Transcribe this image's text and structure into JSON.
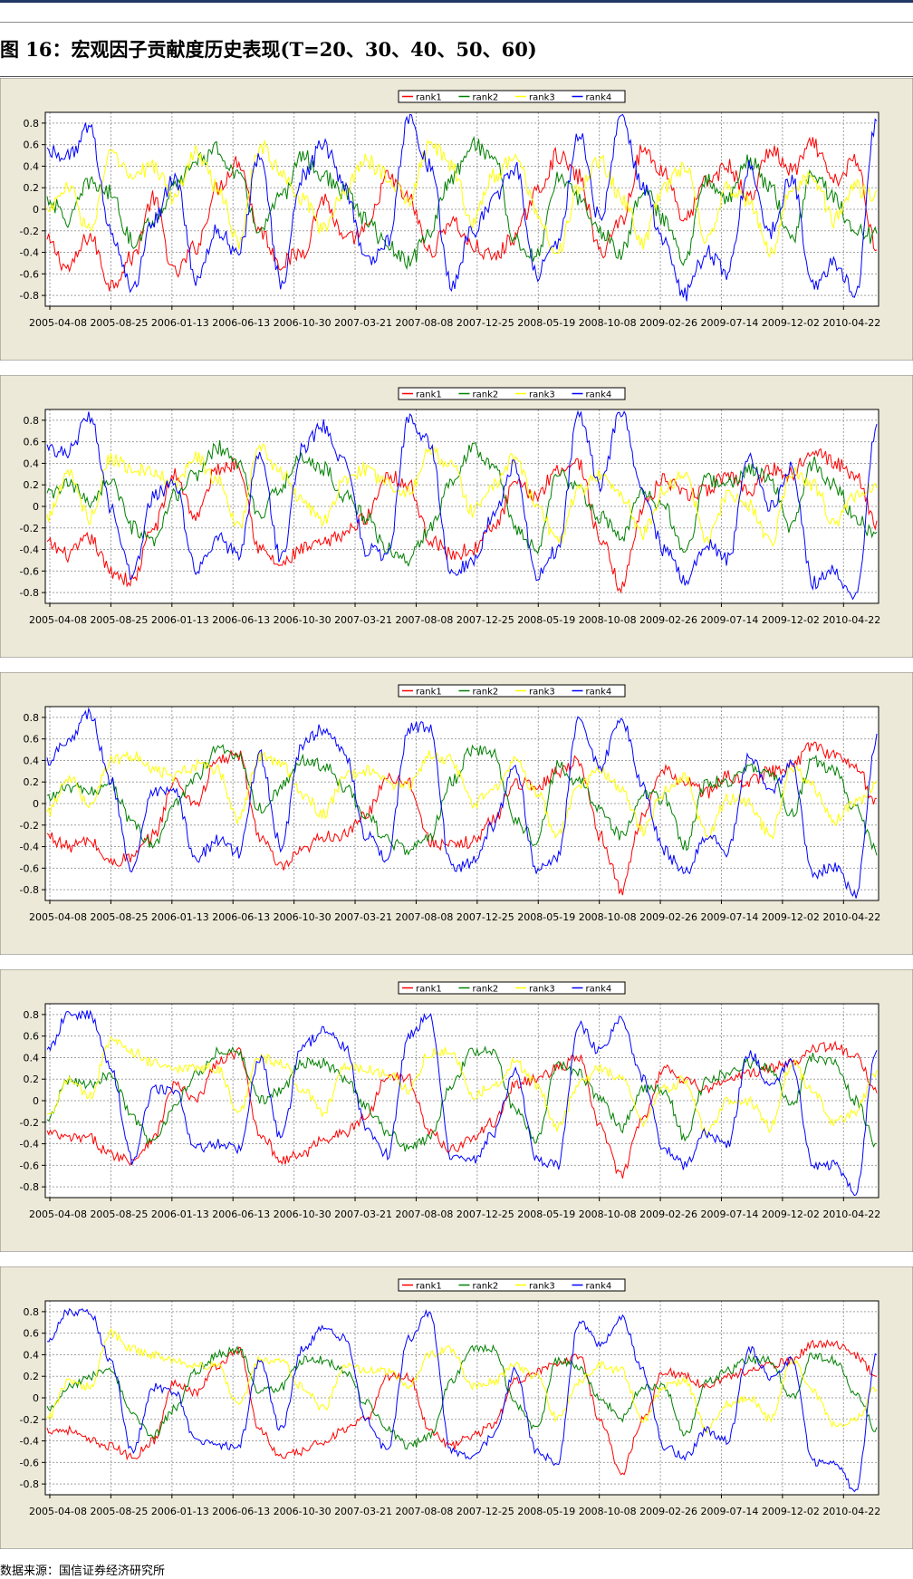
{
  "figure": {
    "title": "图 16：宏观因子贡献度历史表现(T=20、30、40、50、60)",
    "source_note": "数据来源：国信证券经济研究所"
  },
  "colors": {
    "rank1": "#ff0000",
    "rank2": "#008000",
    "rank3": "#ffff00",
    "rank4": "#0000ff",
    "plot_background": "#ffffff",
    "frame_background": "#ece9d8",
    "grid": "#a0a0a0"
  },
  "chart_data": [
    {
      "type": "line",
      "x_ticks": [
        "2005-04-08",
        "2005-08-25",
        "2006-01-13",
        "2006-06-13",
        "2006-10-30",
        "2007-03-21",
        "2007-08-08",
        "2007-12-25",
        "2008-05-19",
        "2008-10-08",
        "2009-02-26",
        "2009-07-14",
        "2009-12-02",
        "2010-04-22"
      ],
      "y_ticks": [
        "0.8",
        "0.6",
        "0.4",
        "0.2",
        "0",
        "-0.2",
        "-0.4",
        "-0.6",
        "-0.8"
      ],
      "ylim": [
        -0.9,
        0.9
      ],
      "grid": true,
      "legend_position": "top-center",
      "series": [
        {
          "name": "rank1",
          "values": [
            -0.3,
            -0.55,
            -0.25,
            -0.7,
            -0.45,
            0.1,
            -0.6,
            -0.35,
            0.2,
            0.45,
            -0.2,
            -0.5,
            -0.4,
            0.1,
            -0.3,
            -0.2,
            0.3,
            0.1,
            -0.4,
            -0.1,
            -0.35,
            -0.45,
            -0.25,
            0.15,
            0.5,
            0.3,
            -0.4,
            -0.1,
            0.55,
            0.35,
            -0.1,
            0.25,
            0.4,
            0.1,
            0.55,
            0.35,
            0.6,
            0.25,
            0.45,
            -0.35
          ]
        },
        {
          "name": "rank2",
          "values": [
            0.1,
            -0.1,
            0.25,
            0.15,
            -0.3,
            -0.1,
            0.2,
            0.45,
            0.55,
            0.3,
            -0.2,
            0.1,
            0.5,
            0.3,
            0.15,
            -0.1,
            -0.35,
            -0.5,
            -0.2,
            0.3,
            0.6,
            0.5,
            -0.3,
            -0.45,
            0.3,
            0.1,
            -0.2,
            -0.4,
            0.2,
            -0.1,
            -0.45,
            0.3,
            0.1,
            0.45,
            0.2,
            -0.3,
            0.35,
            0.1,
            -0.2,
            -0.25
          ]
        },
        {
          "name": "rank3",
          "values": [
            0.0,
            0.2,
            -0.2,
            0.5,
            0.3,
            0.4,
            0.1,
            0.55,
            0.2,
            -0.3,
            0.6,
            0.35,
            0.1,
            -0.2,
            0.2,
            0.45,
            0.3,
            0.1,
            0.6,
            0.4,
            -0.1,
            0.3,
            0.5,
            0.0,
            -0.4,
            0.2,
            0.45,
            0.1,
            -0.3,
            0.2,
            0.4,
            -0.3,
            0.2,
            0.05,
            -0.4,
            0.2,
            0.3,
            -0.1,
            0.2,
            0.1
          ]
        },
        {
          "name": "rank4",
          "values": [
            0.55,
            0.5,
            0.75,
            -0.2,
            -0.75,
            -0.1,
            0.3,
            -0.65,
            -0.2,
            -0.4,
            0.5,
            -0.7,
            0.3,
            0.6,
            0.2,
            -0.5,
            -0.3,
            0.85,
            0.4,
            -0.7,
            -0.2,
            0.1,
            0.4,
            -0.6,
            -0.3,
            0.7,
            -0.1,
            0.85,
            0.2,
            -0.3,
            -0.8,
            -0.4,
            -0.6,
            0.4,
            -0.2,
            0.3,
            -0.7,
            -0.5,
            -0.8,
            0.85
          ]
        }
      ]
    },
    {
      "type": "line",
      "x_ticks": [
        "2005-04-08",
        "2005-08-25",
        "2006-01-13",
        "2006-06-13",
        "2006-10-30",
        "2007-03-21",
        "2007-08-08",
        "2007-12-25",
        "2008-05-19",
        "2008-10-08",
        "2009-02-26",
        "2009-07-14",
        "2009-12-02",
        "2010-04-22"
      ],
      "y_ticks": [
        "0.8",
        "0.6",
        "0.4",
        "0.2",
        "0",
        "-0.2",
        "-0.4",
        "-0.6",
        "-0.8"
      ],
      "ylim": [
        -0.9,
        0.9
      ],
      "grid": true,
      "legend_position": "top-center",
      "series": [
        {
          "name": "rank1",
          "values": [
            -0.35,
            -0.45,
            -0.3,
            -0.6,
            -0.7,
            -0.2,
            0.3,
            -0.1,
            0.35,
            0.4,
            -0.4,
            -0.55,
            -0.4,
            -0.35,
            -0.25,
            -0.1,
            0.3,
            0.2,
            -0.3,
            -0.45,
            -0.4,
            -0.2,
            0.2,
            0.1,
            0.35,
            0.4,
            -0.3,
            -0.75,
            0.0,
            0.25,
            0.1,
            0.15,
            0.3,
            0.15,
            0.35,
            0.3,
            0.55,
            0.4,
            0.3,
            -0.15
          ]
        },
        {
          "name": "rank2",
          "values": [
            0.1,
            0.2,
            0.05,
            0.25,
            -0.2,
            -0.35,
            0.1,
            0.3,
            0.55,
            0.4,
            -0.1,
            0.2,
            0.45,
            0.35,
            0.1,
            -0.1,
            -0.4,
            -0.5,
            -0.2,
            0.25,
            0.55,
            0.4,
            -0.2,
            -0.4,
            0.3,
            0.15,
            -0.1,
            -0.3,
            0.15,
            0.0,
            -0.45,
            0.25,
            0.2,
            0.35,
            0.25,
            -0.2,
            0.4,
            0.2,
            -0.1,
            -0.3
          ]
        },
        {
          "name": "rank3",
          "values": [
            -0.1,
            0.3,
            -0.1,
            0.45,
            0.35,
            0.3,
            0.2,
            0.45,
            0.25,
            -0.2,
            0.55,
            0.3,
            0.05,
            -0.15,
            0.25,
            0.35,
            0.2,
            0.15,
            0.5,
            0.4,
            -0.05,
            0.2,
            0.45,
            0.05,
            -0.35,
            0.15,
            0.3,
            0.1,
            -0.25,
            0.15,
            0.3,
            -0.3,
            0.1,
            0.0,
            -0.35,
            0.3,
            0.2,
            -0.15,
            0.1,
            0.2
          ]
        },
        {
          "name": "rank4",
          "values": [
            0.55,
            0.5,
            0.85,
            0.0,
            -0.65,
            0.1,
            0.2,
            -0.6,
            -0.3,
            -0.45,
            0.5,
            -0.5,
            0.55,
            0.75,
            0.4,
            -0.4,
            -0.45,
            0.8,
            0.6,
            -0.65,
            -0.5,
            -0.1,
            0.4,
            -0.65,
            -0.4,
            0.85,
            0.2,
            0.9,
            0.1,
            -0.4,
            -0.7,
            -0.35,
            -0.5,
            0.45,
            0.0,
            0.35,
            -0.7,
            -0.6,
            -0.85,
            0.75
          ]
        }
      ]
    },
    {
      "type": "line",
      "x_ticks": [
        "2005-04-08",
        "2005-08-25",
        "2006-01-13",
        "2006-06-13",
        "2006-10-30",
        "2007-03-21",
        "2007-08-08",
        "2007-12-25",
        "2008-05-19",
        "2008-10-08",
        "2009-02-26",
        "2009-07-14",
        "2009-12-02",
        "2010-04-22"
      ],
      "y_ticks": [
        "0.8",
        "0.6",
        "0.4",
        "0.2",
        "0",
        "-0.2",
        "-0.4",
        "-0.6",
        "-0.8"
      ],
      "ylim": [
        -0.9,
        0.9
      ],
      "grid": true,
      "legend_position": "top-center",
      "series": [
        {
          "name": "rank1",
          "values": [
            -0.3,
            -0.4,
            -0.35,
            -0.55,
            -0.5,
            -0.3,
            0.2,
            0.0,
            0.4,
            0.45,
            -0.3,
            -0.6,
            -0.45,
            -0.3,
            -0.3,
            -0.1,
            0.25,
            0.2,
            -0.35,
            -0.4,
            -0.35,
            -0.15,
            0.2,
            0.15,
            0.3,
            0.4,
            -0.3,
            -0.8,
            -0.1,
            0.3,
            0.2,
            0.1,
            0.25,
            0.2,
            0.3,
            0.35,
            0.55,
            0.45,
            0.35,
            0.0
          ]
        },
        {
          "name": "rank2",
          "values": [
            0.05,
            0.15,
            0.1,
            0.2,
            -0.2,
            -0.4,
            0.0,
            0.25,
            0.5,
            0.45,
            -0.05,
            0.15,
            0.4,
            0.35,
            0.15,
            -0.1,
            -0.35,
            -0.45,
            -0.3,
            0.2,
            0.5,
            0.45,
            -0.15,
            -0.35,
            0.35,
            0.2,
            -0.05,
            -0.3,
            0.1,
            0.05,
            -0.4,
            0.2,
            0.2,
            0.35,
            0.3,
            -0.1,
            0.4,
            0.3,
            -0.05,
            -0.45
          ]
        },
        {
          "name": "rank3",
          "values": [
            -0.1,
            0.25,
            0.0,
            0.4,
            0.45,
            0.3,
            0.25,
            0.35,
            0.3,
            -0.15,
            0.45,
            0.35,
            0.1,
            -0.1,
            0.25,
            0.3,
            0.2,
            0.15,
            0.45,
            0.4,
            0.0,
            0.15,
            0.4,
            0.1,
            -0.3,
            0.15,
            0.3,
            0.15,
            -0.25,
            0.1,
            0.25,
            -0.3,
            0.05,
            0.0,
            -0.3,
            0.35,
            0.15,
            -0.15,
            0.0,
            0.2
          ]
        },
        {
          "name": "rank4",
          "values": [
            0.4,
            0.6,
            0.85,
            0.2,
            -0.6,
            0.1,
            0.1,
            -0.5,
            -0.35,
            -0.45,
            0.45,
            -0.4,
            0.55,
            0.7,
            0.45,
            -0.3,
            -0.5,
            0.7,
            0.7,
            -0.6,
            -0.55,
            -0.2,
            0.35,
            -0.6,
            -0.5,
            0.8,
            0.35,
            0.8,
            0.15,
            -0.45,
            -0.65,
            -0.3,
            -0.45,
            0.45,
            0.1,
            0.35,
            -0.65,
            -0.6,
            -0.85,
            0.6
          ]
        }
      ]
    },
    {
      "type": "line",
      "x_ticks": [
        "2005-04-08",
        "2005-08-25",
        "2006-01-13",
        "2006-06-13",
        "2006-10-30",
        "2007-03-21",
        "2007-08-08",
        "2007-12-25",
        "2008-05-19",
        "2008-10-08",
        "2009-02-26",
        "2009-07-14",
        "2009-12-02",
        "2010-04-22"
      ],
      "y_ticks": [
        "0.8",
        "0.6",
        "0.4",
        "0.2",
        "0",
        "-0.2",
        "-0.4",
        "-0.6",
        "-0.8"
      ],
      "ylim": [
        -0.9,
        0.9
      ],
      "grid": true,
      "legend_position": "top-center",
      "series": [
        {
          "name": "rank1",
          "values": [
            -0.3,
            -0.35,
            -0.35,
            -0.5,
            -0.55,
            -0.35,
            0.15,
            0.0,
            0.35,
            0.45,
            -0.3,
            -0.55,
            -0.5,
            -0.35,
            -0.3,
            -0.15,
            0.25,
            0.2,
            -0.3,
            -0.45,
            -0.35,
            -0.2,
            0.15,
            0.2,
            0.3,
            0.4,
            -0.25,
            -0.7,
            -0.15,
            0.3,
            0.2,
            0.1,
            0.2,
            0.25,
            0.3,
            0.35,
            0.5,
            0.5,
            0.4,
            0.1
          ]
        },
        {
          "name": "rank2",
          "values": [
            -0.2,
            0.2,
            0.15,
            0.25,
            -0.15,
            -0.4,
            -0.05,
            0.25,
            0.45,
            0.45,
            0.0,
            0.1,
            0.35,
            0.35,
            0.2,
            -0.05,
            -0.3,
            -0.45,
            -0.35,
            0.15,
            0.45,
            0.45,
            -0.1,
            -0.35,
            0.35,
            0.25,
            0.0,
            -0.25,
            0.1,
            0.1,
            -0.35,
            0.2,
            0.25,
            0.35,
            0.3,
            -0.05,
            0.4,
            0.35,
            0.0,
            -0.4
          ]
        },
        {
          "name": "rank3",
          "values": [
            -0.15,
            0.2,
            0.05,
            0.55,
            0.45,
            0.35,
            0.3,
            0.3,
            0.3,
            -0.1,
            0.4,
            0.35,
            0.1,
            -0.1,
            0.3,
            0.3,
            0.25,
            0.1,
            0.45,
            0.45,
            0.05,
            0.15,
            0.35,
            0.15,
            -0.25,
            0.15,
            0.3,
            0.2,
            -0.2,
            0.1,
            0.2,
            -0.3,
            0.0,
            0.0,
            -0.25,
            0.35,
            0.1,
            -0.2,
            -0.1,
            0.25
          ]
        },
        {
          "name": "rank4",
          "values": [
            0.45,
            0.8,
            0.8,
            0.3,
            -0.55,
            0.1,
            0.1,
            -0.45,
            -0.4,
            -0.45,
            0.4,
            -0.35,
            0.5,
            0.65,
            0.5,
            -0.25,
            -0.5,
            0.6,
            0.8,
            -0.55,
            -0.55,
            -0.3,
            0.3,
            -0.55,
            -0.6,
            0.7,
            0.45,
            0.75,
            0.2,
            -0.45,
            -0.6,
            -0.3,
            -0.4,
            0.45,
            0.15,
            0.35,
            -0.6,
            -0.6,
            -0.85,
            0.5
          ]
        }
      ]
    },
    {
      "type": "line",
      "x_ticks": [
        "2005-04-08",
        "2005-08-25",
        "2006-01-13",
        "2006-06-13",
        "2006-10-30",
        "2007-03-21",
        "2007-08-08",
        "2007-12-25",
        "2008-05-19",
        "2008-10-08",
        "2009-02-26",
        "2009-07-14",
        "2009-12-02",
        "2010-04-22"
      ],
      "y_ticks": [
        "0.8",
        "0.6",
        "0.4",
        "0.2",
        "0",
        "-0.2",
        "-0.4",
        "-0.6",
        "-0.8"
      ],
      "ylim": [
        -0.9,
        0.9
      ],
      "grid": true,
      "legend_position": "top-center",
      "series": [
        {
          "name": "rank1",
          "values": [
            -0.3,
            -0.3,
            -0.4,
            -0.45,
            -0.55,
            -0.4,
            0.15,
            0.05,
            0.3,
            0.45,
            -0.3,
            -0.55,
            -0.5,
            -0.4,
            -0.3,
            -0.2,
            0.2,
            0.2,
            -0.3,
            -0.45,
            -0.35,
            -0.25,
            0.15,
            0.25,
            0.3,
            0.4,
            -0.2,
            -0.7,
            -0.2,
            0.25,
            0.2,
            0.1,
            0.2,
            0.25,
            0.3,
            0.35,
            0.5,
            0.5,
            0.4,
            0.2
          ]
        },
        {
          "name": "rank2",
          "values": [
            -0.1,
            0.1,
            0.2,
            0.25,
            -0.15,
            -0.35,
            -0.1,
            0.25,
            0.4,
            0.45,
            0.05,
            0.1,
            0.35,
            0.35,
            0.25,
            -0.05,
            -0.3,
            -0.45,
            -0.35,
            0.15,
            0.45,
            0.45,
            -0.05,
            -0.3,
            0.35,
            0.3,
            0.0,
            -0.2,
            0.1,
            0.1,
            -0.35,
            0.15,
            0.25,
            0.35,
            0.35,
            0.0,
            0.4,
            0.35,
            0.05,
            -0.3
          ]
        },
        {
          "name": "rank3",
          "values": [
            -0.2,
            0.15,
            0.1,
            0.6,
            0.45,
            0.4,
            0.35,
            0.3,
            0.3,
            -0.05,
            0.35,
            0.35,
            0.1,
            -0.1,
            0.3,
            0.25,
            0.25,
            0.1,
            0.4,
            0.45,
            0.1,
            0.15,
            0.3,
            0.2,
            -0.2,
            0.15,
            0.3,
            0.25,
            -0.2,
            0.1,
            0.15,
            -0.3,
            -0.05,
            0.0,
            -0.2,
            0.35,
            0.05,
            -0.25,
            -0.2,
            0.1
          ]
        },
        {
          "name": "rank4",
          "values": [
            0.5,
            0.8,
            0.8,
            0.35,
            -0.5,
            0.1,
            0.05,
            -0.4,
            -0.45,
            -0.45,
            0.35,
            -0.3,
            0.45,
            0.65,
            0.55,
            -0.2,
            -0.5,
            0.55,
            0.8,
            -0.5,
            -0.55,
            -0.35,
            0.25,
            -0.5,
            -0.6,
            0.7,
            0.5,
            0.75,
            0.25,
            -0.45,
            -0.55,
            -0.3,
            -0.4,
            0.45,
            0.2,
            0.35,
            -0.6,
            -0.6,
            -0.85,
            0.4
          ]
        }
      ]
    }
  ]
}
